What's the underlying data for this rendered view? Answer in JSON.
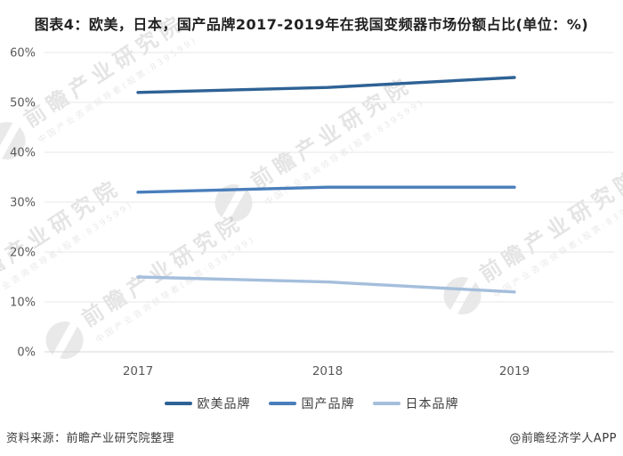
{
  "title": "图表4：欧美，日本，国产品牌2017-2019年在我国变频器市场份额占比(单位：%)",
  "chart_data": {
    "type": "line",
    "categories": [
      "2017",
      "2018",
      "2019"
    ],
    "series": [
      {
        "name": "欧美品牌",
        "color": "#2E6295",
        "values": [
          52,
          53,
          55
        ]
      },
      {
        "name": "国产品牌",
        "color": "#4A7EBB",
        "values": [
          32,
          33,
          33
        ]
      },
      {
        "name": "日本品牌",
        "color": "#A5BEDC",
        "values": [
          15,
          14,
          12
        ]
      }
    ],
    "title": "图表4：欧美，日本，国产品牌2017-2019年在我国变频器市场份额占比(单位：%)",
    "xlabel": "",
    "ylabel": "",
    "ylim": [
      0,
      60
    ],
    "ytick_step": 10,
    "ytick_labels": [
      "0%",
      "10%",
      "20%",
      "30%",
      "40%",
      "50%",
      "60%"
    ],
    "grid": true,
    "legend_position": "bottom"
  },
  "watermark": {
    "brand": "前瞻产业研究院",
    "tagline": "中国产业咨询领导者(股票:839599)"
  },
  "footer": {
    "source": "资料来源：前瞻产业研究院整理",
    "credit": "@前瞻经济学人APP"
  }
}
